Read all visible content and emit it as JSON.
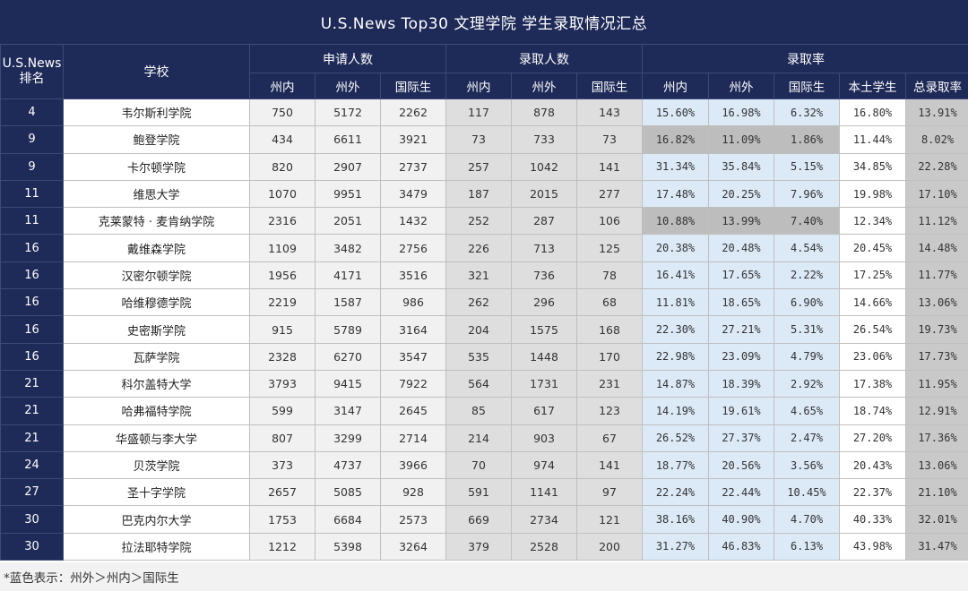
{
  "title": "U.S.News Top30 文理学院 学生录取情况汇总",
  "headers": {
    "rank_line1": "U.S.News",
    "rank_line2": "排名",
    "school": "学校",
    "applications": "申请人数",
    "admissions": "录取人数",
    "rate": "录取率",
    "instate": "州内",
    "outstate": "州外",
    "intl": "国际生",
    "domestic": "本土学生",
    "overall": "总录取率"
  },
  "colors": {
    "header_navy": "#1e2a57",
    "highlight_blue": "#dceaf7",
    "highlight_gray": "#bdbdbd"
  },
  "rows": [
    {
      "rank": "4",
      "school": "韦尔斯利学院",
      "app_in": "750",
      "app_out": "5172",
      "app_intl": "2262",
      "adm_in": "117",
      "adm_out": "878",
      "adm_intl": "143",
      "r_in": "15.60%",
      "r_out": "16.98%",
      "r_intl": "6.32%",
      "r_dom": "16.80%",
      "r_total": "13.91%",
      "hl": "blue"
    },
    {
      "rank": "9",
      "school": "鲍登学院",
      "app_in": "434",
      "app_out": "6611",
      "app_intl": "3921",
      "adm_in": "73",
      "adm_out": "733",
      "adm_intl": "73",
      "r_in": "16.82%",
      "r_out": "11.09%",
      "r_intl": "1.86%",
      "r_dom": "11.44%",
      "r_total": "8.02%",
      "hl": "gray"
    },
    {
      "rank": "9",
      "school": "卡尔顿学院",
      "app_in": "820",
      "app_out": "2907",
      "app_intl": "2737",
      "adm_in": "257",
      "adm_out": "1042",
      "adm_intl": "141",
      "r_in": "31.34%",
      "r_out": "35.84%",
      "r_intl": "5.15%",
      "r_dom": "34.85%",
      "r_total": "22.28%",
      "hl": "blue"
    },
    {
      "rank": "11",
      "school": "维思大学",
      "app_in": "1070",
      "app_out": "9951",
      "app_intl": "3479",
      "adm_in": "187",
      "adm_out": "2015",
      "adm_intl": "277",
      "r_in": "17.48%",
      "r_out": "20.25%",
      "r_intl": "7.96%",
      "r_dom": "19.98%",
      "r_total": "17.10%",
      "hl": "blue"
    },
    {
      "rank": "11",
      "school": "克莱蒙特 · 麦肯纳学院",
      "app_in": "2316",
      "app_out": "2051",
      "app_intl": "1432",
      "adm_in": "252",
      "adm_out": "287",
      "adm_intl": "106",
      "r_in": "10.88%",
      "r_out": "13.99%",
      "r_intl": "7.40%",
      "r_dom": "12.34%",
      "r_total": "11.12%",
      "hl": "gray"
    },
    {
      "rank": "16",
      "school": "戴维森学院",
      "app_in": "1109",
      "app_out": "3482",
      "app_intl": "2756",
      "adm_in": "226",
      "adm_out": "713",
      "adm_intl": "125",
      "r_in": "20.38%",
      "r_out": "20.48%",
      "r_intl": "4.54%",
      "r_dom": "20.45%",
      "r_total": "14.48%",
      "hl": "blue"
    },
    {
      "rank": "16",
      "school": "汉密尔顿学院",
      "app_in": "1956",
      "app_out": "4171",
      "app_intl": "3516",
      "adm_in": "321",
      "adm_out": "736",
      "adm_intl": "78",
      "r_in": "16.41%",
      "r_out": "17.65%",
      "r_intl": "2.22%",
      "r_dom": "17.25%",
      "r_total": "11.77%",
      "hl": "blue"
    },
    {
      "rank": "16",
      "school": "哈维穆德学院",
      "app_in": "2219",
      "app_out": "1587",
      "app_intl": "986",
      "adm_in": "262",
      "adm_out": "296",
      "adm_intl": "68",
      "r_in": "11.81%",
      "r_out": "18.65%",
      "r_intl": "6.90%",
      "r_dom": "14.66%",
      "r_total": "13.06%",
      "hl": "blue"
    },
    {
      "rank": "16",
      "school": "史密斯学院",
      "app_in": "915",
      "app_out": "5789",
      "app_intl": "3164",
      "adm_in": "204",
      "adm_out": "1575",
      "adm_intl": "168",
      "r_in": "22.30%",
      "r_out": "27.21%",
      "r_intl": "5.31%",
      "r_dom": "26.54%",
      "r_total": "19.73%",
      "hl": "blue"
    },
    {
      "rank": "16",
      "school": "瓦萨学院",
      "app_in": "2328",
      "app_out": "6270",
      "app_intl": "3547",
      "adm_in": "535",
      "adm_out": "1448",
      "adm_intl": "170",
      "r_in": "22.98%",
      "r_out": "23.09%",
      "r_intl": "4.79%",
      "r_dom": "23.06%",
      "r_total": "17.73%",
      "hl": "blue"
    },
    {
      "rank": "21",
      "school": "科尔盖特大学",
      "app_in": "3793",
      "app_out": "9415",
      "app_intl": "7922",
      "adm_in": "564",
      "adm_out": "1731",
      "adm_intl": "231",
      "r_in": "14.87%",
      "r_out": "18.39%",
      "r_intl": "2.92%",
      "r_dom": "17.38%",
      "r_total": "11.95%",
      "hl": "blue"
    },
    {
      "rank": "21",
      "school": "哈弗福特学院",
      "app_in": "599",
      "app_out": "3147",
      "app_intl": "2645",
      "adm_in": "85",
      "adm_out": "617",
      "adm_intl": "123",
      "r_in": "14.19%",
      "r_out": "19.61%",
      "r_intl": "4.65%",
      "r_dom": "18.74%",
      "r_total": "12.91%",
      "hl": "blue"
    },
    {
      "rank": "21",
      "school": "华盛顿与李大学",
      "app_in": "807",
      "app_out": "3299",
      "app_intl": "2714",
      "adm_in": "214",
      "adm_out": "903",
      "adm_intl": "67",
      "r_in": "26.52%",
      "r_out": "27.37%",
      "r_intl": "2.47%",
      "r_dom": "27.20%",
      "r_total": "17.36%",
      "hl": "blue"
    },
    {
      "rank": "24",
      "school": "贝茨学院",
      "app_in": "373",
      "app_out": "4737",
      "app_intl": "3966",
      "adm_in": "70",
      "adm_out": "974",
      "adm_intl": "141",
      "r_in": "18.77%",
      "r_out": "20.56%",
      "r_intl": "3.56%",
      "r_dom": "20.43%",
      "r_total": "13.06%",
      "hl": "blue"
    },
    {
      "rank": "27",
      "school": "圣十字学院",
      "app_in": "2657",
      "app_out": "5085",
      "app_intl": "928",
      "adm_in": "591",
      "adm_out": "1141",
      "adm_intl": "97",
      "r_in": "22.24%",
      "r_out": "22.44%",
      "r_intl": "10.45%",
      "r_dom": "22.37%",
      "r_total": "21.10%",
      "hl": "blue"
    },
    {
      "rank": "30",
      "school": "巴克内尔大学",
      "app_in": "1753",
      "app_out": "6684",
      "app_intl": "2573",
      "adm_in": "669",
      "adm_out": "2734",
      "adm_intl": "121",
      "r_in": "38.16%",
      "r_out": "40.90%",
      "r_intl": "4.70%",
      "r_dom": "40.33%",
      "r_total": "32.01%",
      "hl": "blue"
    },
    {
      "rank": "30",
      "school": "拉法耶特学院",
      "app_in": "1212",
      "app_out": "5398",
      "app_intl": "3264",
      "adm_in": "379",
      "adm_out": "2528",
      "adm_intl": "200",
      "r_in": "31.27%",
      "r_out": "46.83%",
      "r_intl": "6.13%",
      "r_dom": "43.98%",
      "r_total": "31.47%",
      "hl": "blue"
    }
  ],
  "footnote": "*蓝色表示：州外＞州内＞国际生"
}
